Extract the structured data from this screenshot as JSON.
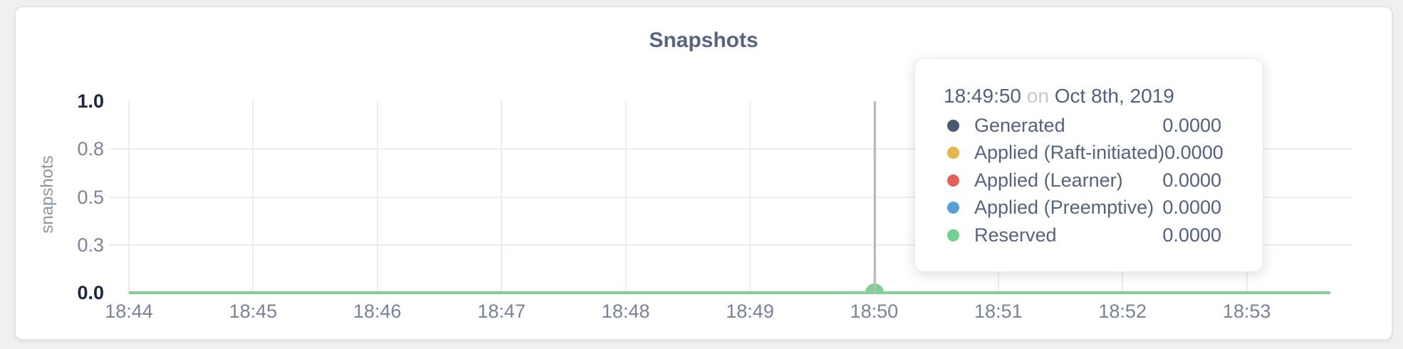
{
  "page": {
    "background": "#f0f0f1"
  },
  "chart": {
    "title": "Snapshots",
    "ylabel": "snapshots",
    "y_ticks": [
      {
        "label": "1.0",
        "value": 1.0,
        "strong": true
      },
      {
        "label": "0.8",
        "value": 0.75,
        "strong": false
      },
      {
        "label": "0.5",
        "value": 0.5,
        "strong": false
      },
      {
        "label": "0.3",
        "value": 0.25,
        "strong": false
      },
      {
        "label": "0.0",
        "value": 0.0,
        "strong": true
      }
    ],
    "x_ticks": [
      "18:44",
      "18:45",
      "18:46",
      "18:47",
      "18:48",
      "18:49",
      "18:50",
      "18:51",
      "18:52",
      "18:53"
    ],
    "hover": {
      "x_label": "18:50"
    }
  },
  "tooltip": {
    "time": "18:49:50",
    "conjunction": "on",
    "date": "Oct 8th, 2019",
    "rows": [
      {
        "name": "Generated",
        "value": "0.0000",
        "color": "#475872"
      },
      {
        "name": "Applied (Raft-initiated)",
        "value": "0.0000",
        "color": "#e7b54a"
      },
      {
        "name": "Applied (Learner)",
        "value": "0.0000",
        "color": "#e0605a"
      },
      {
        "name": "Applied (Preemptive)",
        "value": "0.0000",
        "color": "#57a0d6"
      },
      {
        "name": "Reserved",
        "value": "0.0000",
        "color": "#70d28e"
      }
    ]
  },
  "colors": {
    "title": "#56657f",
    "tick_label": "#7b8498",
    "tick_label_strong": "#1c2640",
    "grid": "#ededef",
    "zero_line": "#82d094",
    "hover_line": "#b9babc",
    "hover_dot": "#7fcf92",
    "series_generated": "#475872",
    "series_raft_initiated": "#e7b54a",
    "series_learner": "#e0605a",
    "series_preemptive": "#57a0d6",
    "series_reserved": "#70d28e"
  },
  "chart_data": {
    "type": "line",
    "title": "Snapshots",
    "xlabel": "",
    "ylabel": "snapshots",
    "x": [
      "18:44",
      "18:45",
      "18:46",
      "18:47",
      "18:48",
      "18:49",
      "18:50",
      "18:51",
      "18:52",
      "18:53"
    ],
    "series": [
      {
        "name": "Generated",
        "color": "#475872",
        "values": [
          0,
          0,
          0,
          0,
          0,
          0,
          0,
          0,
          0,
          0
        ]
      },
      {
        "name": "Applied (Raft-initiated)",
        "color": "#e7b54a",
        "values": [
          0,
          0,
          0,
          0,
          0,
          0,
          0,
          0,
          0,
          0
        ]
      },
      {
        "name": "Applied (Learner)",
        "color": "#e0605a",
        "values": [
          0,
          0,
          0,
          0,
          0,
          0,
          0,
          0,
          0,
          0
        ]
      },
      {
        "name": "Applied (Preemptive)",
        "color": "#57a0d6",
        "values": [
          0,
          0,
          0,
          0,
          0,
          0,
          0,
          0,
          0,
          0
        ]
      },
      {
        "name": "Reserved",
        "color": "#70d28e",
        "values": [
          0,
          0,
          0,
          0,
          0,
          0,
          0,
          0,
          0,
          0
        ]
      }
    ],
    "ylim": [
      0,
      1
    ],
    "y_tick_labels": [
      "0.0",
      "0.3",
      "0.5",
      "0.8",
      "1.0"
    ],
    "grid": true,
    "legend_position": "tooltip-only",
    "hover_point": {
      "time": "18:49:50",
      "date": "Oct 8th, 2019",
      "values": {
        "Generated": 0.0,
        "Applied (Raft-initiated)": 0.0,
        "Applied (Learner)": 0.0,
        "Applied (Preemptive)": 0.0,
        "Reserved": 0.0
      }
    }
  }
}
